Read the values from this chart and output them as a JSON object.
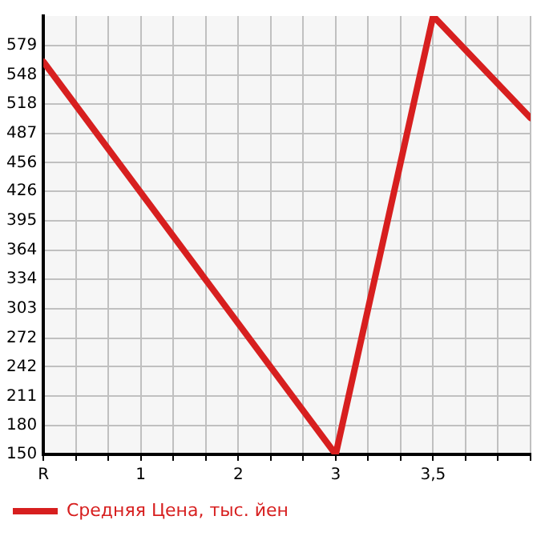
{
  "chart_data": {
    "type": "line",
    "categories": [
      "R",
      "1",
      "2",
      "3",
      "3,5",
      null
    ],
    "series": [
      {
        "name": "Средняя Цена, тыс. йен",
        "color": "#d71f1f",
        "values": [
          562,
          null,
          null,
          150,
          610,
          503
        ]
      }
    ],
    "ylim": [
      150,
      610
    ],
    "yticks": [
      150,
      180,
      211,
      242,
      272,
      303,
      334,
      364,
      395,
      426,
      456,
      487,
      518,
      548,
      579
    ],
    "grid": true,
    "legend": "bottom left",
    "marker": "none",
    "line_style": "solid"
  }
}
